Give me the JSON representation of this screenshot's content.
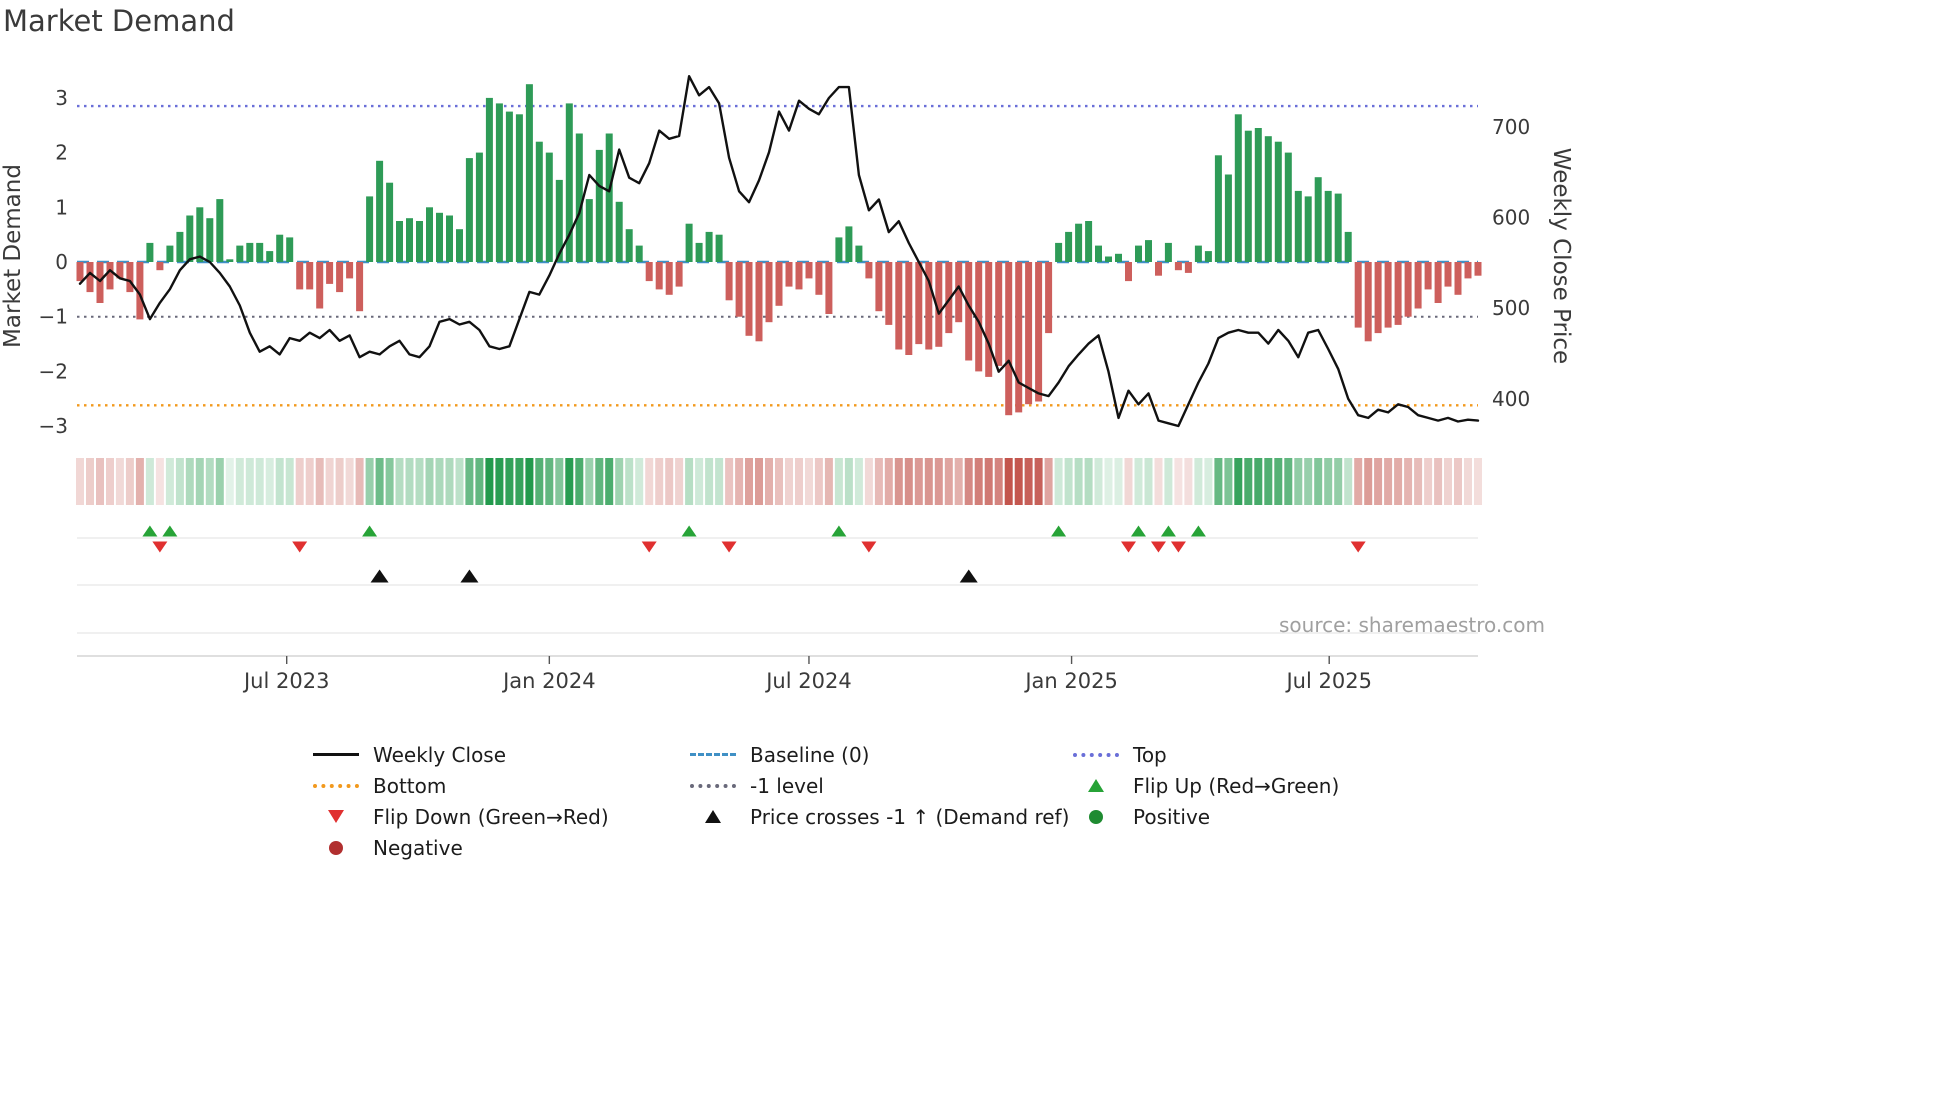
{
  "page": {
    "title": "Market Demand",
    "source": "source: sharemaestro.com"
  },
  "chart_data": {
    "type": "combo",
    "title": "Market Demand",
    "start_date": "2023-02-06",
    "frequency": "weekly",
    "left_axis": {
      "label": "Market Demand",
      "ticks": [
        -3,
        -2,
        -1,
        0,
        1,
        2,
        3
      ],
      "range": [
        -3.42,
        3.42
      ]
    },
    "right_axis": {
      "label": "Weekly Close Price",
      "ticks": [
        400,
        500,
        600,
        700
      ],
      "range": [
        345,
        757
      ]
    },
    "x_ticks": [
      {
        "label": "Jul 2023",
        "week": 20.7
      },
      {
        "label": "Jan 2024",
        "week": 47.0
      },
      {
        "label": "Jul 2024",
        "week": 73.0
      },
      {
        "label": "Jan 2025",
        "week": 99.3
      },
      {
        "label": "Jul 2025",
        "week": 125.1
      }
    ],
    "reference_lines": {
      "baseline": {
        "label": "Baseline (0)",
        "value": 0,
        "style": "dashed",
        "color": "#4090c5"
      },
      "top": {
        "label": "Top",
        "value": 2.85,
        "style": "dotted",
        "color": "#6a6fd8"
      },
      "bottom": {
        "label": "Bottom",
        "value": -2.62,
        "style": "dotted",
        "color": "#f2991d"
      },
      "minus1": {
        "label": "-1 level",
        "value": -1,
        "style": "dotted",
        "color": "#69697a"
      }
    },
    "series": [
      {
        "name": "Market Demand",
        "type": "bar",
        "axis": "left",
        "values": [
          -0.35,
          -0.55,
          -0.75,
          -0.5,
          -0.3,
          -0.55,
          -1.05,
          0.35,
          -0.15,
          0.3,
          0.55,
          0.85,
          1.0,
          0.8,
          1.15,
          0.05,
          0.3,
          0.35,
          0.35,
          0.2,
          0.5,
          0.45,
          -0.5,
          -0.5,
          -0.85,
          -0.4,
          -0.55,
          -0.3,
          -0.9,
          1.2,
          1.85,
          1.45,
          0.75,
          0.8,
          0.75,
          1.0,
          0.9,
          0.85,
          0.6,
          1.9,
          2.0,
          3.0,
          2.9,
          2.75,
          2.7,
          3.25,
          2.2,
          2.0,
          1.5,
          2.9,
          2.35,
          1.15,
          2.05,
          2.35,
          1.1,
          0.6,
          0.3,
          -0.35,
          -0.5,
          -0.6,
          -0.45,
          0.7,
          0.35,
          0.55,
          0.5,
          -0.7,
          -1.0,
          -1.35,
          -1.45,
          -1.1,
          -0.8,
          -0.45,
          -0.5,
          -0.3,
          -0.6,
          -0.95,
          0.45,
          0.65,
          0.3,
          -0.3,
          -0.9,
          -1.15,
          -1.6,
          -1.7,
          -1.5,
          -1.6,
          -1.55,
          -1.3,
          -1.1,
          -1.8,
          -2.0,
          -2.1,
          -1.9,
          -2.8,
          -2.75,
          -2.6,
          -2.55,
          -1.3,
          0.35,
          0.55,
          0.7,
          0.75,
          0.3,
          0.1,
          0.15,
          -0.35,
          0.3,
          0.4,
          -0.25,
          0.35,
          -0.15,
          -0.2,
          0.3,
          0.2,
          1.95,
          1.6,
          2.7,
          2.4,
          2.45,
          2.3,
          2.2,
          2.0,
          1.3,
          1.2,
          1.55,
          1.3,
          1.25,
          0.55,
          -1.2,
          -1.45,
          -1.3,
          -1.2,
          -1.15,
          -1.0,
          -0.85,
          -0.5,
          -0.75,
          -0.45,
          -0.6,
          -0.3,
          -0.25
        ]
      },
      {
        "name": "Weekly Close",
        "type": "line",
        "axis": "right",
        "values": [
          527,
          539,
          530,
          542,
          533,
          530,
          515,
          488,
          506,
          521,
          542,
          554,
          557,
          551,
          539,
          524,
          503,
          473,
          452,
          458,
          449,
          467,
          464,
          473,
          467,
          476,
          464,
          470,
          446,
          452,
          449,
          458,
          464,
          449,
          446,
          458,
          485,
          488,
          482,
          485,
          476,
          458,
          455,
          458,
          488,
          518,
          515,
          536,
          560,
          581,
          605,
          647,
          635,
          629,
          675,
          644,
          638,
          660,
          696,
          687,
          690,
          756,
          735,
          744,
          726,
          666,
          629,
          617,
          641,
          672,
          717,
          696,
          729,
          720,
          714,
          732,
          744,
          744,
          647,
          608,
          620,
          584,
          596,
          572,
          551,
          530,
          494,
          509,
          524,
          503,
          485,
          461,
          430,
          442,
          418,
          412,
          406,
          403,
          418,
          436,
          449,
          461,
          470,
          430,
          379,
          409,
          394,
          406,
          376,
          373,
          370,
          394,
          418,
          439,
          467,
          473,
          476,
          473,
          473,
          461,
          476,
          464,
          446,
          473,
          476,
          455,
          433,
          400,
          382,
          379,
          388,
          385,
          394,
          391,
          382,
          379,
          376,
          379,
          375,
          377,
          376
        ]
      }
    ],
    "markers": {
      "flip_up": {
        "label": "Flip Up (Red→Green)",
        "weeks": [
          7,
          9,
          29,
          61,
          76,
          98,
          106,
          109,
          112
        ]
      },
      "flip_down": {
        "label": "Flip Down (Green→Red)",
        "weeks": [
          8,
          22,
          57,
          65,
          79,
          105,
          108,
          110,
          128
        ]
      },
      "price_cross": {
        "label": "Price crosses -1 ↑ (Demand ref)",
        "weeks": [
          30,
          39,
          89
        ]
      }
    },
    "heatmap": {
      "description": "weekly demand sign/intensity strip",
      "positive_color": "#229a4c",
      "negative_color": "#bf4a42",
      "min_alpha": 0.12
    },
    "colors": {
      "positive_bar": "#2e9b57",
      "negative_bar": "#cd5f5c",
      "line": "#111111",
      "flip_up": "#27a337",
      "flip_down": "#e03030",
      "price_cross": "#111111",
      "positive_dot": "#1f8b31",
      "negative_dot": "#b12f2f"
    }
  },
  "legend": {
    "weekly_close": "Weekly Close",
    "baseline": "Baseline (0)",
    "top": "Top",
    "bottom": "Bottom",
    "minus1": "-1 level",
    "flip_up": "Flip Up (Red→Green)",
    "flip_down": "Flip Down (Green→Red)",
    "price_cross": "Price crosses -1 ↑ (Demand ref)",
    "positive": "Positive",
    "negative": "Negative"
  }
}
